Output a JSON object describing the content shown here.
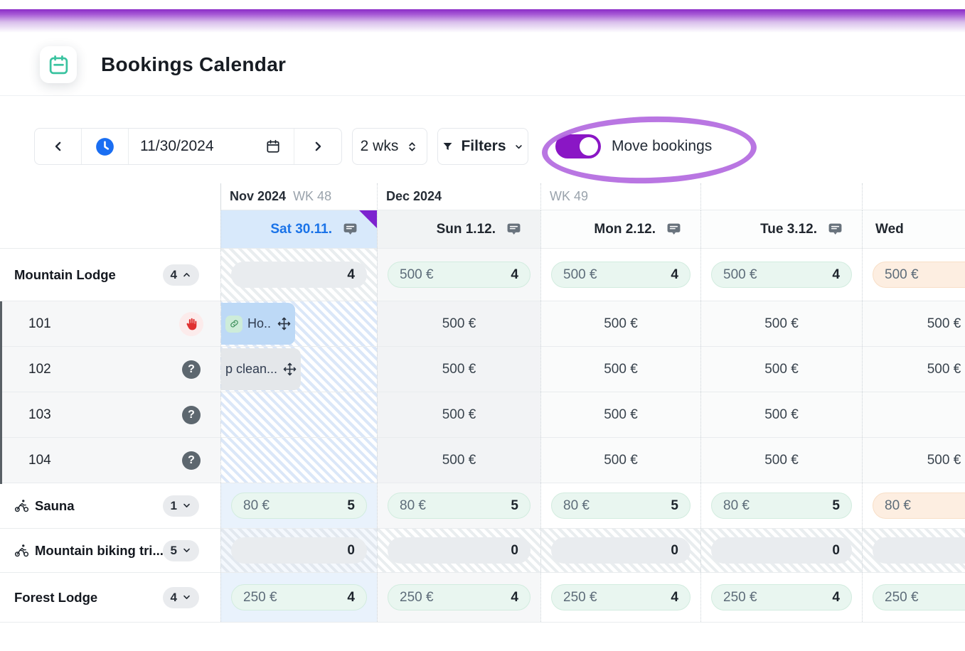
{
  "header": {
    "title": "Bookings Calendar"
  },
  "toolbar": {
    "date_value": "11/30/2024",
    "range_label": "2 wks",
    "filters_label": "Filters",
    "move_bookings_label": "Move bookings",
    "move_bookings_on": true
  },
  "colors": {
    "accent_purple": "#8a16c5",
    "annotation_purple": "#b56fe0",
    "brand_teal": "#3ac3a0",
    "today_blue": "#1a73e8",
    "mint_pill": "#e9f6f0",
    "peach_pill": "#fdeee1"
  },
  "calendar": {
    "months": [
      {
        "name": "Nov 2024",
        "week": "WK 48"
      },
      {
        "name": "Dec 2024",
        "week": ""
      },
      {
        "name": "",
        "week": "WK 49"
      },
      {
        "name": "",
        "week": ""
      },
      {
        "name": "",
        "week": ""
      }
    ],
    "days": [
      {
        "label": "Sat 30.11.",
        "today": true,
        "note_icon": true
      },
      {
        "label": "Sun 1.12.",
        "weekend": true,
        "note_icon": true
      },
      {
        "label": "Mon 2.12.",
        "note_icon": true
      },
      {
        "label": "Tue 3.12.",
        "note_icon": true
      },
      {
        "label": "Wed",
        "clipped": true,
        "note_icon": false
      }
    ],
    "rows": [
      {
        "kind": "group",
        "label": "Mountain Lodge",
        "count": "4",
        "expanded": true,
        "cells": [
          {
            "cell": "pill",
            "variant": "gray",
            "price": "",
            "count": "4",
            "bg": "hatch-gray"
          },
          {
            "cell": "pill",
            "variant": "mint",
            "price": "500 €",
            "count": "4",
            "bg": "soft"
          },
          {
            "cell": "pill",
            "variant": "mint",
            "price": "500 €",
            "count": "4",
            "bg": "plain"
          },
          {
            "cell": "pill",
            "variant": "mint",
            "price": "500 €",
            "count": "4",
            "bg": "plain"
          },
          {
            "cell": "pill",
            "variant": "peach",
            "price": "500 €",
            "count": "",
            "bg": "plain"
          }
        ]
      },
      {
        "kind": "room",
        "label": "101",
        "status": "hand",
        "cells": [
          {
            "cell": "chip",
            "text": "Ho...",
            "variant": "blue",
            "link": true,
            "bg": "hatch-blue"
          },
          {
            "cell": "text",
            "value": "500 €",
            "bg": "weekend"
          },
          {
            "cell": "text",
            "value": "500 €",
            "bg": "faint"
          },
          {
            "cell": "text",
            "value": "500 €",
            "bg": "faint"
          },
          {
            "cell": "text",
            "value": "500 €",
            "bg": "faint"
          }
        ]
      },
      {
        "kind": "room",
        "label": "102",
        "status": "question",
        "cells": [
          {
            "cell": "chip",
            "text": "p clean...",
            "variant": "gray",
            "link": false,
            "bg": "hatch-blue"
          },
          {
            "cell": "text",
            "value": "500 €",
            "bg": "weekend"
          },
          {
            "cell": "text",
            "value": "500 €",
            "bg": "faint"
          },
          {
            "cell": "text",
            "value": "500 €",
            "bg": "faint"
          },
          {
            "cell": "text",
            "value": "500 €",
            "bg": "faint"
          }
        ]
      },
      {
        "kind": "room",
        "label": "103",
        "status": "question",
        "cells": [
          {
            "cell": "empty",
            "bg": "hatch-blue"
          },
          {
            "cell": "text",
            "value": "500 €",
            "bg": "weekend"
          },
          {
            "cell": "text",
            "value": "500 €",
            "bg": "faint"
          },
          {
            "cell": "text",
            "value": "500 €",
            "bg": "faint"
          },
          {
            "cell": "text",
            "value": "",
            "bg": "faint"
          }
        ]
      },
      {
        "kind": "room",
        "label": "104",
        "status": "question",
        "cells": [
          {
            "cell": "empty",
            "bg": "hatch-blue"
          },
          {
            "cell": "text",
            "value": "500 €",
            "bg": "weekend"
          },
          {
            "cell": "text",
            "value": "500 €",
            "bg": "faint"
          },
          {
            "cell": "text",
            "value": "500 €",
            "bg": "faint"
          },
          {
            "cell": "text",
            "value": "500 €",
            "bg": "faint"
          }
        ]
      },
      {
        "kind": "activity",
        "label": "Sauna",
        "count": "1",
        "expanded": false,
        "cells": [
          {
            "cell": "pill",
            "variant": "mint",
            "price": "80 €",
            "count": "5",
            "bg": "today"
          },
          {
            "cell": "pill",
            "variant": "mint",
            "price": "80 €",
            "count": "5",
            "bg": "soft"
          },
          {
            "cell": "pill",
            "variant": "mint",
            "price": "80 €",
            "count": "5",
            "bg": "plain"
          },
          {
            "cell": "pill",
            "variant": "mint",
            "price": "80 €",
            "count": "5",
            "bg": "plain"
          },
          {
            "cell": "pill",
            "variant": "peach",
            "price": "80 €",
            "count": "",
            "bg": "plain"
          }
        ]
      },
      {
        "kind": "activity",
        "label": "Mountain biking tri...",
        "count": "5",
        "expanded": false,
        "cells": [
          {
            "cell": "pill",
            "variant": "gray",
            "price": "",
            "count": "0",
            "bg": "hatch-blue2"
          },
          {
            "cell": "pill",
            "variant": "gray",
            "price": "",
            "count": "0",
            "bg": "hatch-gray"
          },
          {
            "cell": "pill",
            "variant": "gray",
            "price": "",
            "count": "0",
            "bg": "hatch-gray"
          },
          {
            "cell": "pill",
            "variant": "gray",
            "price": "",
            "count": "0",
            "bg": "hatch-gray"
          },
          {
            "cell": "pill",
            "variant": "gray",
            "price": "",
            "count": "",
            "bg": "hatch-gray"
          }
        ]
      },
      {
        "kind": "group",
        "label": "Forest Lodge",
        "count": "4",
        "expanded": false,
        "cells": [
          {
            "cell": "pill",
            "variant": "mint",
            "price": "250 €",
            "count": "4",
            "bg": "today"
          },
          {
            "cell": "pill",
            "variant": "mint",
            "price": "250 €",
            "count": "4",
            "bg": "soft"
          },
          {
            "cell": "pill",
            "variant": "mint",
            "price": "250 €",
            "count": "4",
            "bg": "plain"
          },
          {
            "cell": "pill",
            "variant": "mint",
            "price": "250 €",
            "count": "4",
            "bg": "plain"
          },
          {
            "cell": "pill",
            "variant": "mint",
            "price": "250 €",
            "count": "",
            "bg": "plain"
          }
        ]
      }
    ]
  }
}
